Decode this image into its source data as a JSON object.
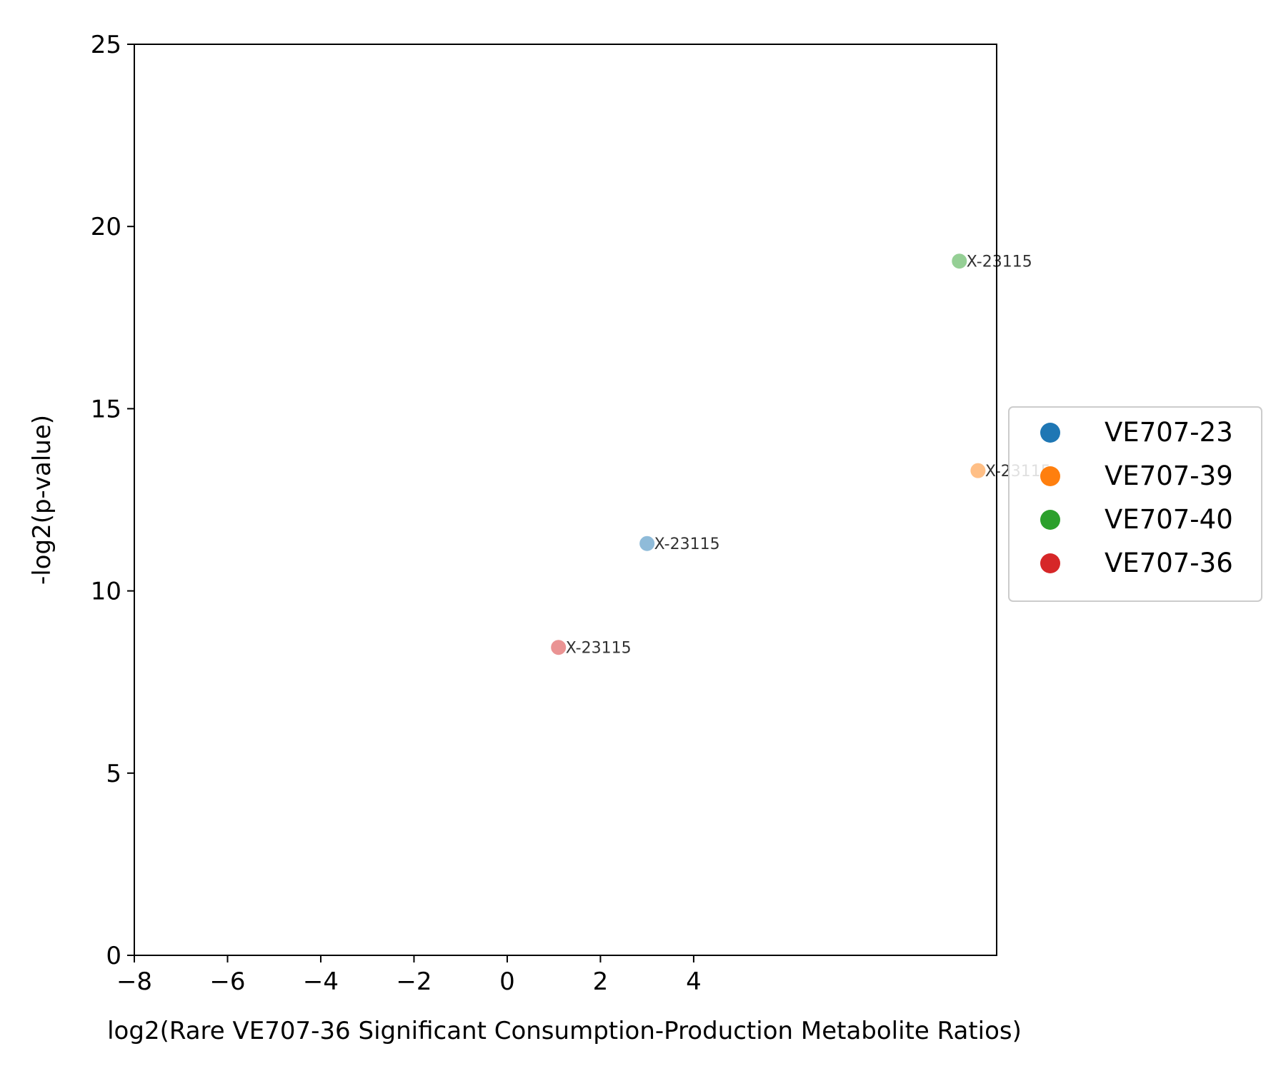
{
  "chart_data": {
    "type": "scatter",
    "xlabel": "log2(Rare VE707-36 Significant Consumption-Production Metabolite Ratios)",
    "ylabel": "-log2(p-value)",
    "xlim": [
      -8,
      10.5
    ],
    "ylim": [
      0,
      25
    ],
    "x_ticks": [
      -8,
      -6,
      -4,
      -2,
      0,
      2,
      4
    ],
    "x_tick_labels": [
      "−8",
      "−6",
      "−4",
      "−2",
      "0",
      "2",
      "4"
    ],
    "y_ticks": [
      0,
      5,
      10,
      15,
      20,
      25
    ],
    "y_tick_labels": [
      "0",
      "5",
      "10",
      "15",
      "20",
      "25"
    ],
    "grid": false,
    "legend_position": "right",
    "series": [
      {
        "name": "VE707-23",
        "color": "#1f77b4",
        "points": [
          {
            "x": 3.0,
            "y": 11.3,
            "label": "X-23115"
          }
        ]
      },
      {
        "name": "VE707-39",
        "color": "#ff7f0e",
        "points": [
          {
            "x": 10.1,
            "y": 13.3,
            "label": "X-23115"
          }
        ]
      },
      {
        "name": "VE707-40",
        "color": "#2ca02c",
        "points": [
          {
            "x": 9.7,
            "y": 19.05,
            "label": "X-23115"
          }
        ]
      },
      {
        "name": "VE707-36",
        "color": "#d62728",
        "points": [
          {
            "x": 1.1,
            "y": 8.45,
            "label": "X-23115"
          }
        ]
      }
    ]
  }
}
